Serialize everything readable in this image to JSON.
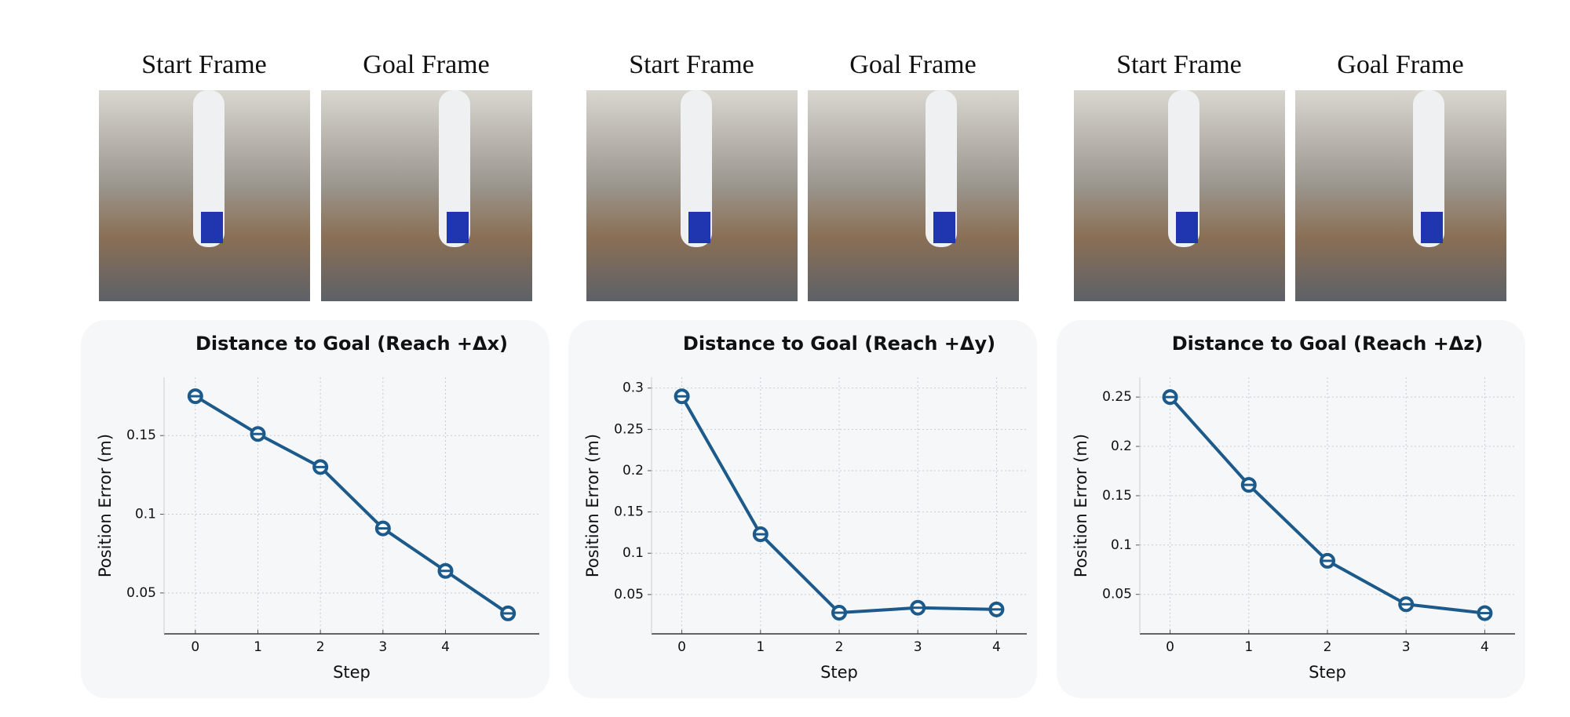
{
  "chart_data": [
    {
      "type": "line",
      "title": "Distance to Goal (Reach +Δx)",
      "frame_labels": [
        "Start Frame",
        "Goal Frame"
      ],
      "x_label": "Step",
      "y_label": "Position Error (m)",
      "x": [
        0,
        1,
        2,
        3,
        4,
        5
      ],
      "values": [
        0.175,
        0.151,
        0.13,
        0.091,
        0.064,
        0.037
      ],
      "color": "#1b5a8a",
      "xlim": [
        -0.5,
        5.5
      ],
      "ylim": [
        0.024,
        0.187
      ],
      "xticks": [
        0,
        1,
        2,
        3,
        4
      ],
      "yticks": [
        0.05,
        0.1,
        0.15
      ],
      "grid": true
    },
    {
      "type": "line",
      "title": "Distance to Goal (Reach +Δy)",
      "frame_labels": [
        "Start Frame",
        "Goal Frame"
      ],
      "x_label": "Step",
      "y_label": "Position Error (m)",
      "x": [
        0,
        1,
        2,
        3,
        4
      ],
      "values": [
        0.29,
        0.123,
        0.028,
        0.034,
        0.032
      ],
      "color": "#1b5a8a",
      "xlim": [
        -0.385,
        4.385
      ],
      "ylim": [
        0.0024,
        0.313
      ],
      "xticks": [
        0,
        1,
        2,
        3,
        4
      ],
      "yticks": [
        0.05,
        0.1,
        0.15,
        0.2,
        0.25,
        0.3
      ],
      "grid": true
    },
    {
      "type": "line",
      "title": "Distance to Goal (Reach +Δz)",
      "frame_labels": [
        "Start Frame",
        "Goal Frame"
      ],
      "x_label": "Step",
      "y_label": "Position Error (m)",
      "x": [
        0,
        1,
        2,
        3,
        4
      ],
      "values": [
        0.25,
        0.161,
        0.084,
        0.04,
        0.031
      ],
      "color": "#1b5a8a",
      "xlim": [
        -0.385,
        4.385
      ],
      "ylim": [
        0.01,
        0.27
      ],
      "xticks": [
        0,
        1,
        2,
        3,
        4
      ],
      "yticks": [
        0.05,
        0.1,
        0.15,
        0.2,
        0.25
      ],
      "grid": true
    }
  ]
}
